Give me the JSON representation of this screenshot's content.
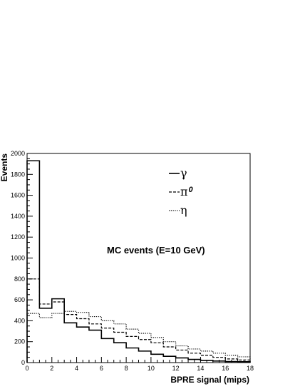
{
  "chart_data": {
    "type": "step-histogram",
    "title": "",
    "xlabel": "BPRE signal (mips)",
    "ylabel": "Events",
    "xlim": [
      0,
      18
    ],
    "ylim": [
      0,
      2000
    ],
    "x_ticks": [
      0,
      2,
      4,
      6,
      8,
      10,
      12,
      14,
      16,
      18
    ],
    "y_ticks": [
      0,
      200,
      400,
      600,
      800,
      1000,
      1200,
      1400,
      1600,
      1800,
      2000
    ],
    "bin_edges": [
      0,
      1,
      2,
      3,
      4,
      5,
      6,
      7,
      8,
      9,
      10,
      11,
      12,
      13,
      14,
      15,
      16,
      17,
      18
    ],
    "annotation": "MC events (E=10 GeV)",
    "legend_position": "top-right",
    "grid": false,
    "series": [
      {
        "name": "γ",
        "style": "solid",
        "color": "#000000",
        "values": [
          1930,
          520,
          610,
          380,
          340,
          310,
          230,
          190,
          140,
          110,
          80,
          60,
          45,
          30,
          20,
          15,
          10,
          8
        ]
      },
      {
        "name": "π",
        "name_sup": "0",
        "style": "dashed",
        "color": "#000000",
        "values": [
          800,
          560,
          580,
          460,
          420,
          370,
          330,
          290,
          250,
          220,
          190,
          150,
          120,
          90,
          70,
          50,
          35,
          25
        ]
      },
      {
        "name": "η",
        "style": "dotted",
        "color": "#000000",
        "values": [
          470,
          430,
          470,
          490,
          480,
          440,
          400,
          370,
          320,
          280,
          240,
          200,
          160,
          130,
          110,
          90,
          70,
          55
        ]
      }
    ]
  }
}
